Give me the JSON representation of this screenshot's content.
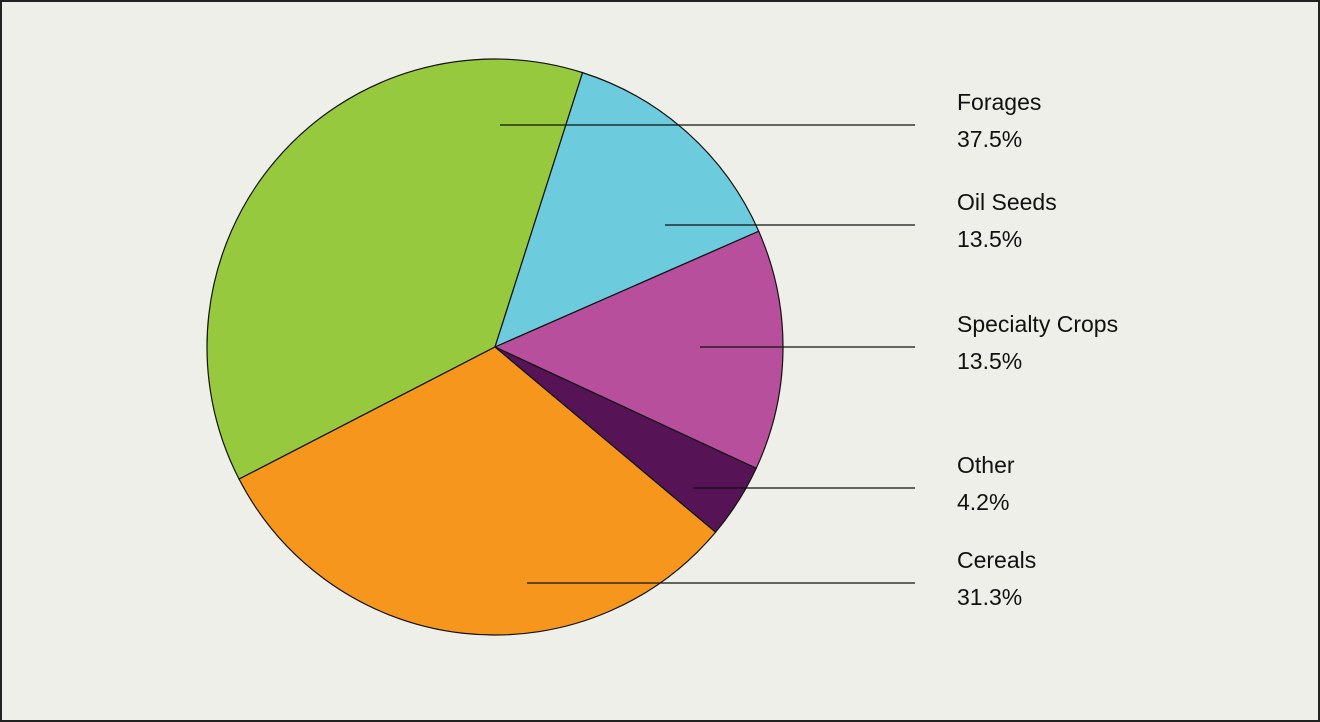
{
  "chart_data": {
    "type": "pie",
    "categories": [
      "Forages",
      "Oil Seeds",
      "Specialty Crops",
      "Other",
      "Cereals"
    ],
    "values": [
      37.5,
      13.5,
      13.5,
      4.2,
      31.3
    ],
    "value_labels": [
      "37.5%",
      "13.5%",
      "13.5%",
      "4.2%",
      "31.3%"
    ],
    "colors": [
      "#96c93d",
      "#6ccbdc",
      "#b74f9d",
      "#561456",
      "#f7961d"
    ]
  }
}
